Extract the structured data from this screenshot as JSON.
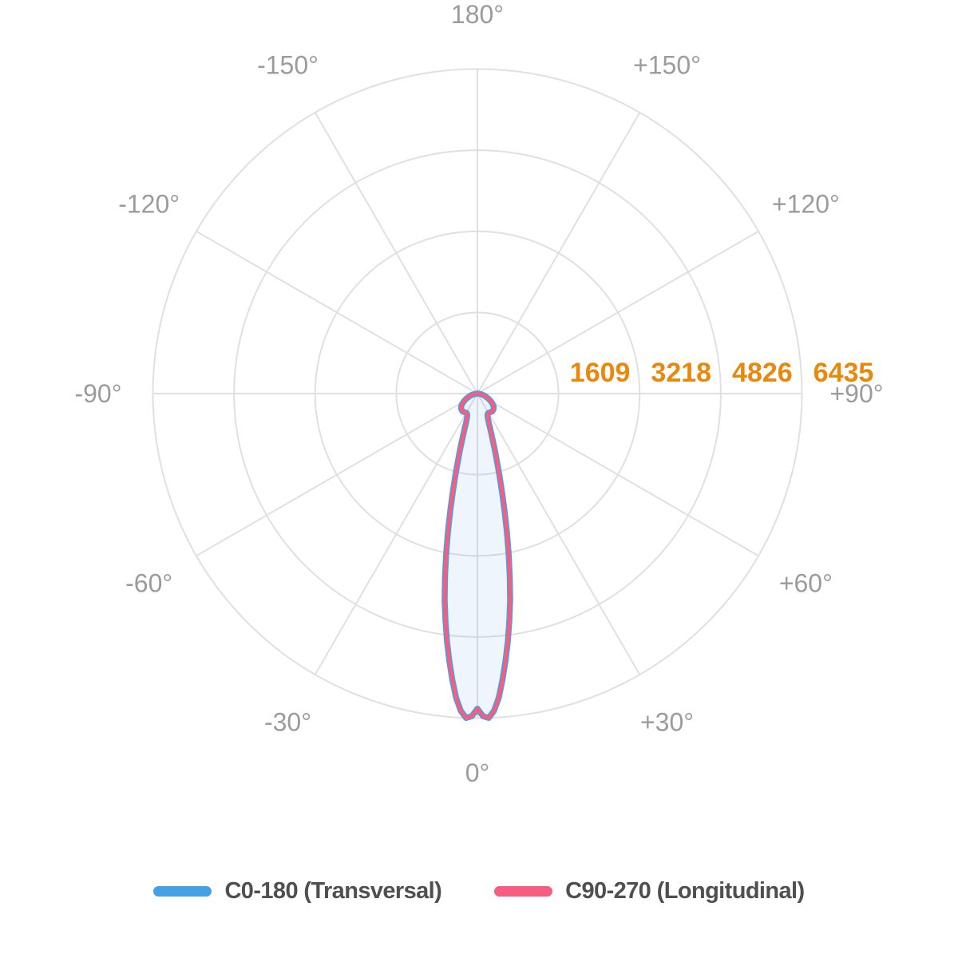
{
  "chart_data": {
    "type": "line",
    "subtype": "polar_photometric_diagram",
    "title": "",
    "units": "cd",
    "grid": true,
    "legend_position": "bottom",
    "angle_ticks": [
      {
        "label": "0°",
        "deg": 0
      },
      {
        "label": "+30°",
        "deg": 30
      },
      {
        "label": "+60°",
        "deg": 60
      },
      {
        "label": "+90°",
        "deg": 90
      },
      {
        "label": "+120°",
        "deg": 120
      },
      {
        "label": "+150°",
        "deg": 150
      },
      {
        "label": "180°",
        "deg": 180
      },
      {
        "label": "-150°",
        "deg": -150
      },
      {
        "label": "-120°",
        "deg": -120
      },
      {
        "label": "-90°",
        "deg": -90
      },
      {
        "label": "-60°",
        "deg": -60
      },
      {
        "label": "-30°",
        "deg": -30
      }
    ],
    "radial_ticks": [
      1609,
      3218,
      4826,
      6435
    ],
    "radial_max": 6435,
    "colors": {
      "grid": "#E0E0E0",
      "angle_labels": "#9B9B9B",
      "radial_labels": "#E8880C",
      "beam_fill": "rgba(86,157,223,0.10)"
    },
    "symmetric": true,
    "gamma_deg": [
      0,
      1,
      2,
      3,
      4,
      5,
      6,
      7,
      8,
      9,
      10,
      11,
      12,
      13,
      14,
      15,
      16,
      17,
      18,
      19,
      20,
      21,
      22.5,
      24,
      26,
      28,
      30,
      33,
      36,
      40,
      44,
      48,
      52,
      56,
      60,
      64,
      68,
      72,
      76,
      80,
      84,
      87,
      90
    ],
    "series": [
      {
        "name": "C0-180 (Transversal)",
        "color": "#45A0E6",
        "intensity": [
          6250,
          6400,
          6435,
          6300,
          6050,
          5700,
          5330,
          4950,
          4550,
          4150,
          3700,
          3250,
          2820,
          2400,
          2030,
          1700,
          1420,
          1200,
          1010,
          860,
          740,
          640,
          555,
          500,
          462,
          445,
          440,
          445,
          452,
          460,
          452,
          435,
          405,
          362,
          310,
          258,
          205,
          158,
          112,
          70,
          32,
          12,
          0
        ]
      },
      {
        "name": "C90-270 (Longitudinal)",
        "color": "#F85C7F",
        "intensity": [
          6250,
          6400,
          6435,
          6300,
          6050,
          5700,
          5330,
          4950,
          4550,
          4150,
          3700,
          3250,
          2820,
          2400,
          2030,
          1700,
          1420,
          1200,
          1010,
          860,
          740,
          640,
          555,
          500,
          462,
          445,
          440,
          445,
          452,
          460,
          452,
          435,
          405,
          362,
          310,
          258,
          205,
          158,
          112,
          70,
          32,
          12,
          0
        ]
      }
    ]
  },
  "legend": {
    "items": [
      {
        "label": "C0-180 (Transversal)"
      },
      {
        "label": "C90-270 (Longitudinal)"
      }
    ]
  }
}
